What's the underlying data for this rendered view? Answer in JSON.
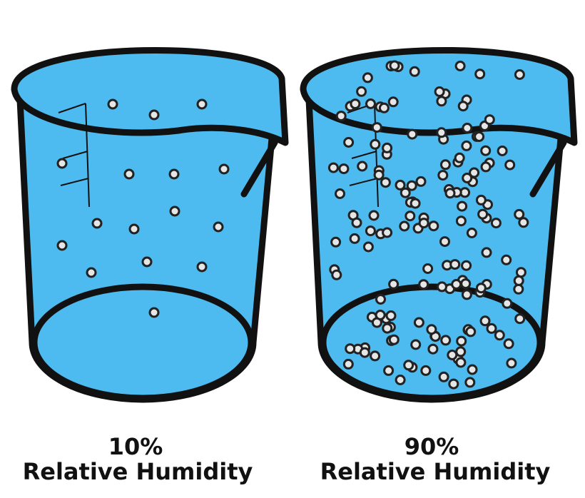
{
  "panels": [
    {
      "percent": "10%",
      "label": "Relative Humidity"
    },
    {
      "percent": "90%",
      "label": "Relative Humidity"
    }
  ]
}
